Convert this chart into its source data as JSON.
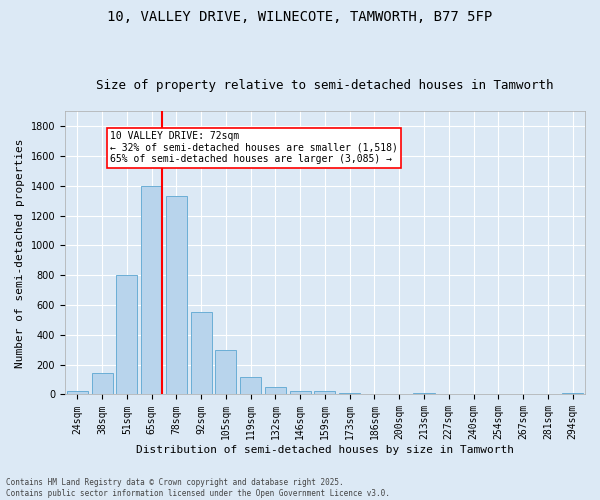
{
  "title": "10, VALLEY DRIVE, WILNECOTE, TAMWORTH, B77 5FP",
  "subtitle": "Size of property relative to semi-detached houses in Tamworth",
  "xlabel": "Distribution of semi-detached houses by size in Tamworth",
  "ylabel": "Number of semi-detached properties",
  "categories": [
    "24sqm",
    "38sqm",
    "51sqm",
    "65sqm",
    "78sqm",
    "92sqm",
    "105sqm",
    "119sqm",
    "132sqm",
    "146sqm",
    "159sqm",
    "173sqm",
    "186sqm",
    "200sqm",
    "213sqm",
    "227sqm",
    "240sqm",
    "254sqm",
    "267sqm",
    "281sqm",
    "294sqm"
  ],
  "values": [
    20,
    145,
    800,
    1400,
    1330,
    550,
    295,
    120,
    48,
    25,
    25,
    10,
    0,
    0,
    8,
    0,
    0,
    0,
    0,
    0,
    12
  ],
  "bar_color": "#B8D4EC",
  "bar_edgecolor": "#6BAED6",
  "vline_color": "red",
  "vline_pos": 3.43,
  "annotation_text": "10 VALLEY DRIVE: 72sqm\n← 32% of semi-detached houses are smaller (1,518)\n65% of semi-detached houses are larger (3,085) →",
  "annotation_box_color": "white",
  "annotation_box_edgecolor": "red",
  "ylim": [
    0,
    1900
  ],
  "yticks": [
    0,
    200,
    400,
    600,
    800,
    1000,
    1200,
    1400,
    1600,
    1800
  ],
  "background_color": "#DCE9F5",
  "grid_color": "white",
  "footer": "Contains HM Land Registry data © Crown copyright and database right 2025.\nContains public sector information licensed under the Open Government Licence v3.0.",
  "title_fontsize": 10,
  "subtitle_fontsize": 9,
  "ylabel_fontsize": 8,
  "xlabel_fontsize": 8,
  "tick_fontsize": 7,
  "footer_fontsize": 5.5,
  "annot_fontsize": 7
}
